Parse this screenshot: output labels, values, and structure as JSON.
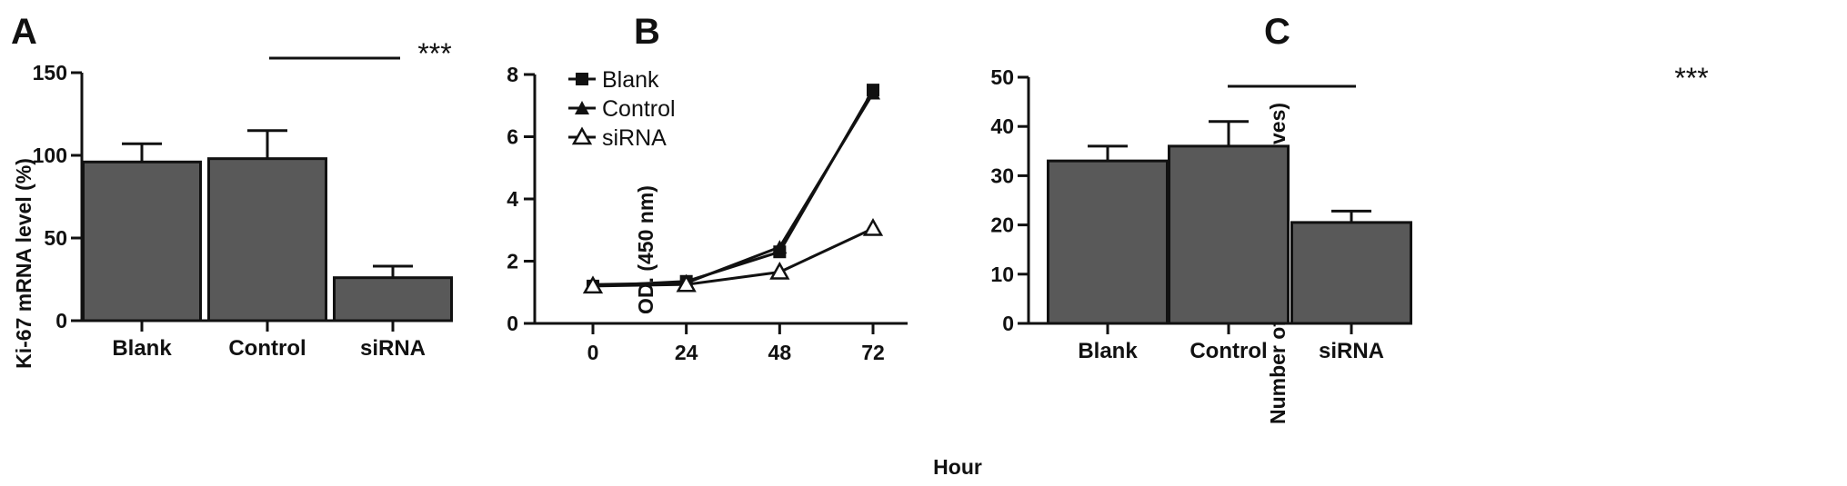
{
  "chart_data": [
    {
      "panel": "A",
      "type": "bar",
      "ylabel": "Ki-67  mRNA level (%)",
      "xlabel": "",
      "ylim": [
        0,
        150
      ],
      "yticks": [
        "0",
        "50",
        "100",
        "150"
      ],
      "categories": [
        "Blank",
        "Control",
        "siRNA"
      ],
      "values": [
        96,
        98,
        26
      ],
      "errors": [
        11,
        17,
        7
      ],
      "bar_color": "#595959",
      "significance": "***"
    },
    {
      "panel": "B",
      "type": "line",
      "ylabel": "OD. (450 nm)",
      "xlabel": "Hour",
      "ylim": [
        0,
        8
      ],
      "yticks": [
        "0",
        "2",
        "4",
        "6",
        "8"
      ],
      "x": [
        0,
        24,
        48,
        72
      ],
      "xticks": [
        "0",
        "24",
        "48",
        "72"
      ],
      "series": [
        {
          "name": "Blank",
          "marker": "filled-square",
          "values": [
            1.2,
            1.35,
            2.3,
            7.5
          ]
        },
        {
          "name": "Control",
          "marker": "filled-triangle",
          "values": [
            1.25,
            1.3,
            2.45,
            7.4
          ]
        },
        {
          "name": "siRNA",
          "marker": "open-triangle",
          "values": [
            1.2,
            1.25,
            1.65,
            3.05
          ]
        }
      ],
      "legend": "top-left",
      "annotation": "**"
    },
    {
      "panel": "C",
      "type": "bar",
      "ylabel": "Number of cells (5 perspectives)",
      "xlabel": "",
      "ylim": [
        0,
        50
      ],
      "yticks": [
        "0",
        "10",
        "20",
        "30",
        "40",
        "50"
      ],
      "categories": [
        "Blank",
        "Control",
        "siRNA"
      ],
      "values": [
        33,
        36,
        20.5
      ],
      "errors": [
        3,
        5,
        2.3
      ],
      "bar_color": "#595959",
      "significance": "***"
    }
  ]
}
